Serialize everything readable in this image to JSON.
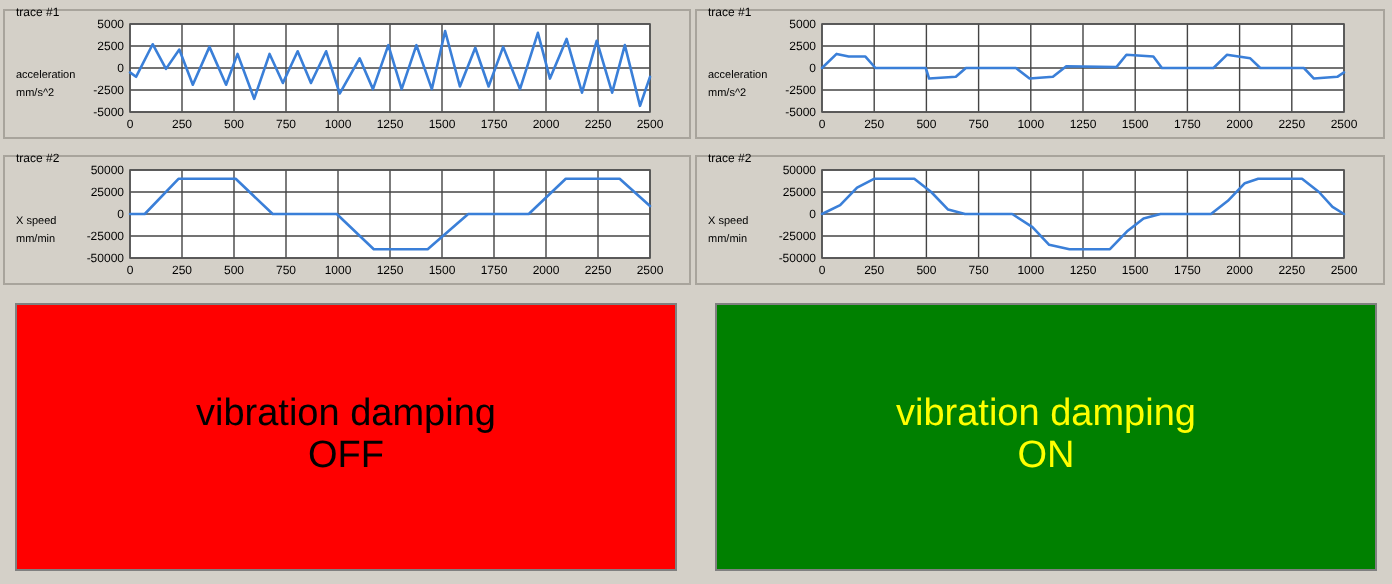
{
  "chart_data": [
    {
      "type": "line",
      "title": "trace #1",
      "ylabel": "acceleration\nmm/s^2",
      "xlim": [
        0,
        2500
      ],
      "ylim": [
        -5000,
        5000
      ],
      "xticks": [
        0,
        250,
        500,
        750,
        1000,
        1250,
        1500,
        1750,
        2000,
        2250,
        2500
      ],
      "yticks": [
        -5000,
        -2500,
        0,
        2500,
        5000
      ],
      "grid": true,
      "marker": "none",
      "line_style": "solid",
      "series": [
        {
          "color": "#3a7fd8",
          "x": [
            0,
            29,
            109,
            173,
            237,
            302,
            382,
            462,
            517,
            597,
            671,
            735,
            806,
            870,
            943,
            1008,
            1104,
            1168,
            1242,
            1306,
            1377,
            1451,
            1515,
            1586,
            1660,
            1724,
            1794,
            1875,
            1961,
            2019,
            2099,
            2173,
            2244,
            2318,
            2379,
            2452,
            2500
          ],
          "values": [
            -500,
            -1000,
            2700,
            -100,
            2100,
            -1900,
            2400,
            -1900,
            1600,
            -3500,
            1600,
            -1700,
            1900,
            -1700,
            1900,
            -2900,
            1100,
            -2400,
            2600,
            -2400,
            2600,
            -2400,
            4200,
            -2100,
            2300,
            -2100,
            2400,
            -2400,
            4000,
            -1200,
            3300,
            -2800,
            3100,
            -2800,
            2600,
            -4300,
            -1000
          ]
        }
      ]
    },
    {
      "type": "line",
      "title": "trace #2",
      "ylabel": "X speed\nmm/min",
      "xlim": [
        0,
        2500
      ],
      "ylim": [
        -50000,
        50000
      ],
      "xticks": [
        0,
        250,
        500,
        750,
        1000,
        1250,
        1500,
        1750,
        2000,
        2250,
        2500
      ],
      "yticks": [
        -50000,
        -25000,
        0,
        25000,
        50000
      ],
      "grid": true,
      "marker": "none",
      "line_style": "solid",
      "series": [
        {
          "color": "#3a7fd8",
          "x": [
            0,
            71,
            233,
            508,
            686,
            994,
            1172,
            1431,
            1626,
            1917,
            2095,
            2354,
            2500
          ],
          "values": [
            0,
            0,
            40000,
            40000,
            0,
            0,
            -40000,
            -40000,
            0,
            0,
            40000,
            40000,
            9000
          ]
        }
      ]
    },
    {
      "type": "line",
      "title": "trace #1",
      "ylabel": "acceleration\nmm/s^2",
      "xlim": [
        0,
        2500
      ],
      "ylim": [
        -5000,
        5000
      ],
      "xticks": [
        0,
        250,
        500,
        750,
        1000,
        1250,
        1500,
        1750,
        2000,
        2250,
        2500
      ],
      "yticks": [
        -5000,
        -2500,
        0,
        2500,
        5000
      ],
      "grid": true,
      "marker": "none",
      "line_style": "solid",
      "series": [
        {
          "color": "#3a7fd8",
          "x": [
            0,
            70,
            128,
            208,
            256,
            497,
            513,
            641,
            689,
            929,
            994,
            1106,
            1170,
            1410,
            1458,
            1587,
            1628,
            1875,
            1939,
            2051,
            2099,
            2308,
            2356,
            2468,
            2500
          ],
          "values": [
            0,
            1600,
            1300,
            1300,
            0,
            0,
            -1200,
            -1000,
            0,
            0,
            -1200,
            -1000,
            200,
            100,
            1500,
            1300,
            0,
            0,
            1500,
            1100,
            0,
            0,
            -1200,
            -1000,
            -500
          ]
        }
      ]
    },
    {
      "type": "line",
      "title": "trace #2",
      "ylabel": "X speed\nmm/min",
      "xlim": [
        0,
        2500
      ],
      "ylim": [
        -50000,
        50000
      ],
      "xticks": [
        0,
        250,
        500,
        750,
        1000,
        1250,
        1500,
        1750,
        2000,
        2250,
        2500
      ],
      "yticks": [
        -50000,
        -25000,
        0,
        25000,
        50000
      ],
      "grid": true,
      "marker": "none",
      "line_style": "solid",
      "series": [
        {
          "color": "#3a7fd8",
          "x": [
            0,
            87,
            168,
            249,
            442,
            523,
            604,
            685,
            911,
            1008,
            1088,
            1185,
            1379,
            1460,
            1540,
            1621,
            1863,
            1944,
            2025,
            2089,
            2299,
            2380,
            2445,
            2500
          ],
          "values": [
            0,
            10000,
            30000,
            40000,
            40000,
            25000,
            5000,
            0,
            0,
            -15000,
            -35000,
            -40000,
            -40000,
            -20000,
            -5000,
            0,
            0,
            15000,
            35000,
            40000,
            40000,
            25000,
            8000,
            0
          ]
        }
      ]
    },
    {
      "type": "other",
      "annotations": [
        "vibration damping",
        "OFF"
      ],
      "colors": [
        "#ff0000",
        "#000000"
      ]
    },
    {
      "type": "other",
      "annotations": [
        "vibration damping",
        "ON"
      ],
      "colors": [
        "#008000",
        "#ffff00"
      ]
    }
  ]
}
